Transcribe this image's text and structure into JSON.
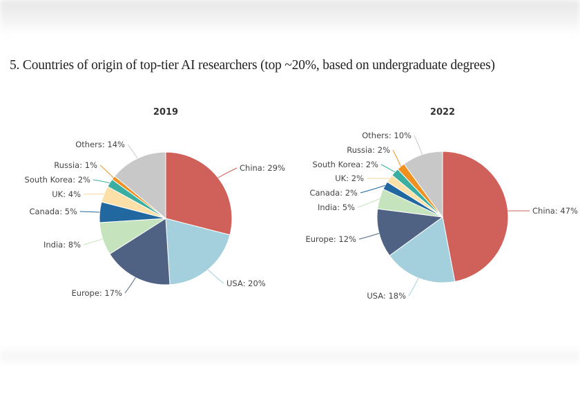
{
  "heading": "5. Countries of origin of top-tier AI researchers (top ~20%, based on undergraduate degrees)",
  "chart_data": [
    {
      "type": "pie",
      "title": "2019",
      "categories": [
        "China",
        "USA",
        "Europe",
        "India",
        "Canada",
        "UK",
        "South Korea",
        "Russia",
        "Others"
      ],
      "values": [
        29,
        20,
        17,
        8,
        5,
        4,
        2,
        1,
        14
      ],
      "unit": "%",
      "colors": [
        "#d0605a",
        "#a3d0dc",
        "#4f6283",
        "#c5e3bd",
        "#2167a0",
        "#fde0a8",
        "#3aaea0",
        "#f0901f",
        "#c8c8c8"
      ]
    },
    {
      "type": "pie",
      "title": "2022",
      "categories": [
        "China",
        "USA",
        "Europe",
        "India",
        "Canada",
        "UK",
        "South Korea",
        "Russia",
        "Others"
      ],
      "values": [
        47,
        18,
        12,
        5,
        2,
        2,
        2,
        2,
        10
      ],
      "unit": "%",
      "colors": [
        "#d0605a",
        "#a3d0dc",
        "#4f6283",
        "#c5e3bd",
        "#2167a0",
        "#fde0a8",
        "#3aaea0",
        "#f0901f",
        "#c8c8c8"
      ]
    }
  ]
}
